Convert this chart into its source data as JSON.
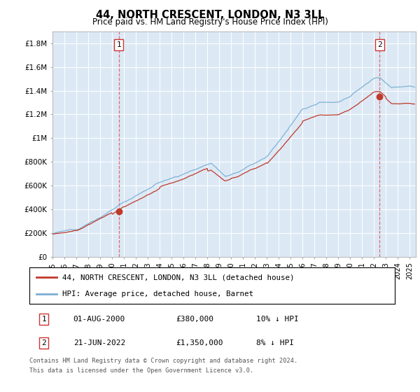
{
  "title": "44, NORTH CRESCENT, LONDON, N3 3LL",
  "subtitle": "Price paid vs. HM Land Registry's House Price Index (HPI)",
  "legend_line1": "44, NORTH CRESCENT, LONDON, N3 3LL (detached house)",
  "legend_line2": "HPI: Average price, detached house, Barnet",
  "annotation1_date": "01-AUG-2000",
  "annotation1_price": "£380,000",
  "annotation1_hpi": "10% ↓ HPI",
  "annotation2_date": "21-JUN-2022",
  "annotation2_price": "£1,350,000",
  "annotation2_hpi": "8% ↓ HPI",
  "footer1": "Contains HM Land Registry data © Crown copyright and database right 2024.",
  "footer2": "This data is licensed under the Open Government Licence v3.0.",
  "hpi_color": "#7bafd4",
  "price_color": "#c0392b",
  "background_color": "#dce9f5",
  "ylim": [
    0,
    1900000
  ],
  "yticks": [
    0,
    200000,
    400000,
    600000,
    800000,
    1000000,
    1200000,
    1400000,
    1600000,
    1800000
  ],
  "ytick_labels": [
    "£0",
    "£200K",
    "£400K",
    "£600K",
    "£800K",
    "£1M",
    "£1.2M",
    "£1.4M",
    "£1.6M",
    "£1.8M"
  ],
  "xlim_start": 1995,
  "xlim_end": 2025.5,
  "sale1_year": 2000.58,
  "sale1_price": 380000,
  "sale2_year": 2022.47,
  "sale2_price": 1350000
}
